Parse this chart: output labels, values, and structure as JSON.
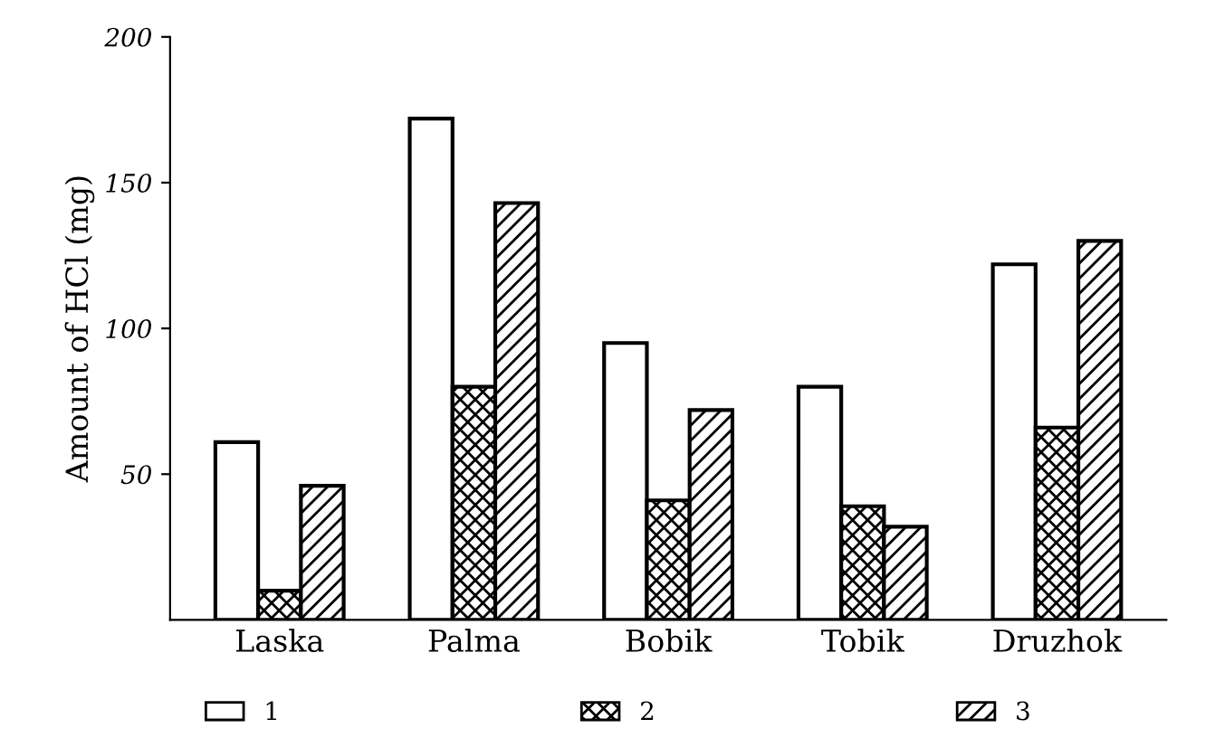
{
  "chart_data": {
    "type": "bar",
    "ylabel": "Amount of HCl (mg)",
    "categories": [
      "Laska",
      "Palma",
      "Bobik",
      "Tobik",
      "Druzhok"
    ],
    "series": [
      {
        "name": "1",
        "color": "#ffffff",
        "values": [
          61,
          172,
          95,
          80,
          122
        ]
      },
      {
        "name": "2",
        "color": "#000000",
        "values": [
          10,
          80,
          41,
          39,
          66
        ]
      },
      {
        "name": "3",
        "color": "#000000",
        "values": [
          46,
          143,
          72,
          32,
          130
        ]
      }
    ],
    "ylim": [
      0,
      200
    ],
    "yticks": [
      50,
      100,
      150,
      200
    ],
    "grid": false,
    "legend": "bottom"
  }
}
